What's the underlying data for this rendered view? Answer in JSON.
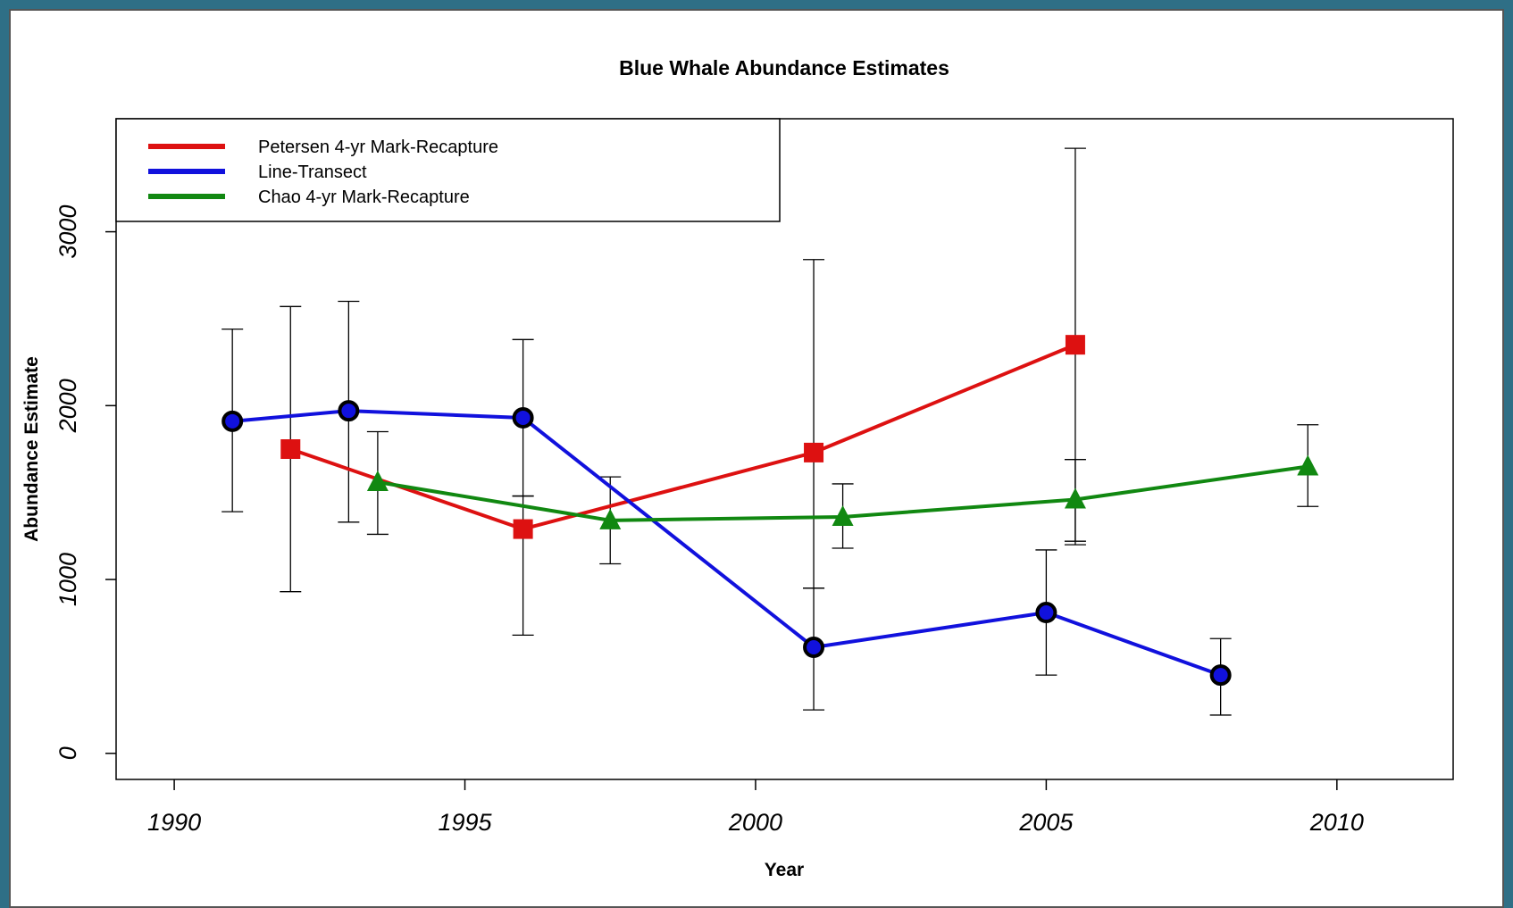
{
  "chart_data": {
    "type": "line",
    "title": "Blue Whale Abundance Estimates",
    "xlabel": "Year",
    "ylabel": "Abundance Estimate",
    "xlim": [
      1989,
      2012
    ],
    "ylim": [
      -150,
      3650
    ],
    "x_ticks": [
      1990,
      1995,
      2000,
      2005,
      2010
    ],
    "y_ticks": [
      0,
      1000,
      2000,
      3000
    ],
    "grid": false,
    "legend_position": "top-left",
    "series": [
      {
        "name": "Petersen 4-yr Mark-Recapture",
        "color": "#dd1111",
        "marker": "square",
        "points": [
          {
            "x": 1992,
            "y": 1750,
            "lo": 930,
            "hi": 2570
          },
          {
            "x": 1996,
            "y": 1290,
            "lo": 680,
            "hi": 1480
          },
          {
            "x": 2001,
            "y": 1730,
            "lo": 950,
            "hi": 2840
          },
          {
            "x": 2005.5,
            "y": 2350,
            "lo": 1220,
            "hi": 3480
          }
        ]
      },
      {
        "name": "Line-Transect",
        "color": "#1111dd",
        "marker": "circle",
        "points": [
          {
            "x": 1991,
            "y": 1910,
            "lo": 1390,
            "hi": 2440
          },
          {
            "x": 1993,
            "y": 1970,
            "lo": 1330,
            "hi": 2600
          },
          {
            "x": 1996,
            "y": 1930,
            "lo": 1480,
            "hi": 2380
          },
          {
            "x": 2001,
            "y": 610,
            "lo": 250,
            "hi": 950
          },
          {
            "x": 2005,
            "y": 810,
            "lo": 450,
            "hi": 1170
          },
          {
            "x": 2008,
            "y": 450,
            "lo": 220,
            "hi": 660
          }
        ]
      },
      {
        "name": "Chao 4-yr Mark-Recapture",
        "color": "#118811",
        "marker": "triangle",
        "points": [
          {
            "x": 1993.5,
            "y": 1560,
            "lo": 1260,
            "hi": 1850
          },
          {
            "x": 1997.5,
            "y": 1340,
            "lo": 1090,
            "hi": 1590
          },
          {
            "x": 2001.5,
            "y": 1360,
            "lo": 1180,
            "hi": 1550
          },
          {
            "x": 2005.5,
            "y": 1460,
            "lo": 1200,
            "hi": 1690
          },
          {
            "x": 2009.5,
            "y": 1650,
            "lo": 1420,
            "hi": 1890
          }
        ]
      }
    ]
  }
}
